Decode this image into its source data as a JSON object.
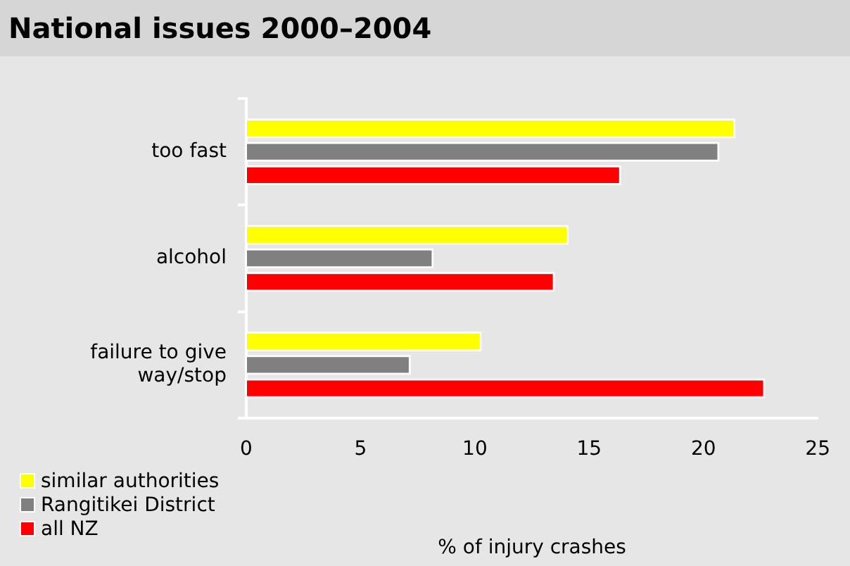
{
  "chart_data": {
    "type": "bar",
    "orientation": "horizontal",
    "title": "National issues 2000–2004",
    "xlabel": "% of injury crashes",
    "categories": [
      "too fast",
      "alcohol",
      "failure to give way/stop"
    ],
    "series": [
      {
        "name": "similar authorities",
        "color": "#ffff00",
        "values": [
          21.4,
          14.1,
          10.3
        ]
      },
      {
        "name": "Rangitikei District",
        "color": "#808080",
        "values": [
          20.7,
          8.2,
          7.2
        ]
      },
      {
        "name": "all NZ",
        "color": "#ff0000",
        "values": [
          16.4,
          13.5,
          22.7
        ]
      }
    ],
    "xlim": [
      0,
      25
    ],
    "xticks": [
      0,
      5,
      10,
      15,
      20,
      25
    ],
    "grid": false,
    "legend": "bottom left"
  }
}
